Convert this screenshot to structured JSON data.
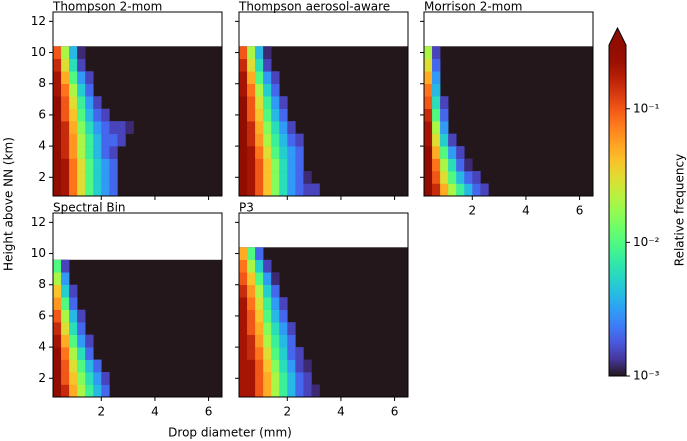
{
  "chart_data": [
    {
      "type": "heatmap",
      "title": "Thompson 2-mom",
      "x_edges": [
        0.2,
        0.5,
        0.8,
        1.1,
        1.4,
        1.7,
        2.0,
        2.3,
        2.6,
        2.9,
        3.2
      ],
      "y_edges": [
        0.8,
        1.6,
        2.4,
        3.2,
        4.0,
        4.8,
        5.6,
        6.4,
        7.2,
        8.0,
        8.8,
        9.6,
        10.4
      ],
      "values": [
        [
          0.3,
          0.2,
          0.08,
          0.03,
          0.01,
          0.005,
          0.003,
          0.002
        ],
        [
          0.3,
          0.2,
          0.08,
          0.03,
          0.01,
          0.005,
          0.003,
          0.002
        ],
        [
          0.3,
          0.2,
          0.08,
          0.03,
          0.01,
          0.005,
          0.003,
          0.002
        ],
        [
          0.3,
          0.15,
          0.06,
          0.02,
          0.008,
          0.004,
          0.002,
          0.0015
        ],
        [
          0.3,
          0.15,
          0.06,
          0.02,
          0.008,
          0.004,
          0.002,
          0.002,
          0.0015
        ],
        [
          0.3,
          0.15,
          0.05,
          0.015,
          0.006,
          0.003,
          0.002,
          0.0015,
          0.0015,
          0.0012
        ],
        [
          0.3,
          0.1,
          0.04,
          0.01,
          0.004,
          0.002,
          0.0015
        ],
        [
          0.3,
          0.1,
          0.03,
          0.008,
          0.003,
          0.0015
        ],
        [
          0.2,
          0.08,
          0.02,
          0.005,
          0.002
        ],
        [
          0.2,
          0.05,
          0.01,
          0.003,
          0.0015
        ],
        [
          0.15,
          0.03,
          0.006,
          0.0015
        ],
        [
          0.1,
          0.02,
          0.004,
          0.0012
        ]
      ],
      "xlim": [
        0.2,
        6.5
      ],
      "ylim": [
        0.8,
        12.6
      ],
      "xticks": [
        2,
        4,
        6
      ],
      "yticks": [
        2,
        4,
        6,
        8,
        10,
        12
      ]
    },
    {
      "type": "heatmap",
      "title": "Thompson aerosol-aware",
      "x_edges": [
        0.2,
        0.5,
        0.8,
        1.1,
        1.4,
        1.7,
        2.0,
        2.3,
        2.6,
        2.9,
        3.2
      ],
      "y_edges": [
        0.8,
        1.6,
        2.4,
        3.2,
        4.0,
        4.8,
        5.6,
        6.4,
        7.2,
        8.0,
        8.8,
        9.6,
        10.4
      ],
      "values": [
        [
          0.3,
          0.2,
          0.1,
          0.04,
          0.015,
          0.006,
          0.003,
          0.002,
          0.0015,
          0.0015
        ],
        [
          0.3,
          0.2,
          0.1,
          0.04,
          0.015,
          0.006,
          0.003,
          0.002,
          0.0012
        ],
        [
          0.3,
          0.2,
          0.1,
          0.04,
          0.015,
          0.006,
          0.003,
          0.002
        ],
        [
          0.3,
          0.2,
          0.08,
          0.03,
          0.01,
          0.005,
          0.003,
          0.002
        ],
        [
          0.3,
          0.15,
          0.06,
          0.02,
          0.008,
          0.004,
          0.002,
          0.0015
        ],
        [
          0.3,
          0.15,
          0.05,
          0.015,
          0.006,
          0.003,
          0.0015
        ],
        [
          0.3,
          0.1,
          0.04,
          0.01,
          0.004,
          0.002
        ],
        [
          0.3,
          0.1,
          0.03,
          0.008,
          0.003,
          0.0015
        ],
        [
          0.2,
          0.08,
          0.02,
          0.005,
          0.002
        ],
        [
          0.2,
          0.05,
          0.01,
          0.003,
          0.0015
        ],
        [
          0.15,
          0.03,
          0.006,
          0.0015
        ],
        [
          0.1,
          0.02,
          0.004,
          0.0012
        ]
      ],
      "xlim": [
        0.2,
        6.5
      ],
      "ylim": [
        0.8,
        12.6
      ],
      "xticks": [
        2,
        4,
        6
      ],
      "yticks": [
        2,
        4,
        6,
        8,
        10,
        12
      ]
    },
    {
      "type": "heatmap",
      "title": "Morrison 2-mom",
      "x_edges": [
        0.2,
        0.5,
        0.8,
        1.1,
        1.4,
        1.7,
        2.0,
        2.3,
        2.6,
        2.9,
        3.2
      ],
      "y_edges": [
        0.8,
        1.6,
        2.4,
        3.2,
        4.0,
        4.8,
        5.6,
        6.4,
        7.2,
        8.0,
        8.8,
        9.6,
        10.4
      ],
      "values": [
        [
          0.3,
          0.15,
          0.05,
          0.02,
          0.008,
          0.004,
          0.002,
          0.0015
        ],
        [
          0.3,
          0.1,
          0.03,
          0.01,
          0.004,
          0.002,
          0.0015
        ],
        [
          0.3,
          0.08,
          0.02,
          0.006,
          0.002,
          0.0012
        ],
        [
          0.25,
          0.05,
          0.01,
          0.003,
          0.0015
        ],
        [
          0.2,
          0.03,
          0.005,
          0.0015
        ],
        [
          0.2,
          0.02,
          0.003
        ],
        [
          0.15,
          0.01,
          0.002
        ],
        [
          0.1,
          0.006,
          0.0015
        ],
        [
          0.08,
          0.004
        ],
        [
          0.05,
          0.003
        ],
        [
          0.03,
          0.002
        ],
        [
          0.02,
          0.0015
        ]
      ],
      "xlim": [
        0.2,
        6.5
      ],
      "ylim": [
        0.8,
        12.6
      ],
      "xticks": [
        2,
        4,
        6
      ],
      "yticks": [
        2,
        4,
        6,
        8,
        10,
        12
      ]
    },
    {
      "type": "heatmap",
      "title": "Spectral Bin",
      "x_edges": [
        0.2,
        0.5,
        0.8,
        1.1,
        1.4,
        1.7,
        2.0,
        2.3,
        2.6,
        2.9,
        3.2
      ],
      "y_edges": [
        0.8,
        1.6,
        2.4,
        3.2,
        4.0,
        4.8,
        5.6,
        6.4,
        7.2,
        8.0,
        8.8,
        9.6
      ],
      "values": [
        [
          0.3,
          0.15,
          0.05,
          0.02,
          0.008,
          0.004,
          0.002
        ],
        [
          0.3,
          0.1,
          0.04,
          0.015,
          0.006,
          0.003,
          0.0015
        ],
        [
          0.3,
          0.1,
          0.03,
          0.01,
          0.004,
          0.002
        ],
        [
          0.25,
          0.08,
          0.02,
          0.006,
          0.002
        ],
        [
          0.2,
          0.05,
          0.01,
          0.003,
          0.0015
        ],
        [
          0.15,
          0.03,
          0.006,
          0.002
        ],
        [
          0.1,
          0.02,
          0.004,
          0.0015
        ],
        [
          0.06,
          0.01,
          0.002
        ],
        [
          0.04,
          0.005,
          0.0015
        ],
        [
          0.02,
          0.003
        ],
        [
          0.01,
          0.0015
        ]
      ],
      "xlim": [
        0.2,
        6.5
      ],
      "ylim": [
        0.8,
        12.6
      ],
      "xticks": [
        2,
        4,
        6
      ],
      "yticks": [
        2,
        4,
        6,
        8,
        10,
        12
      ]
    },
    {
      "type": "heatmap",
      "title": "P3",
      "x_edges": [
        0.2,
        0.5,
        0.8,
        1.1,
        1.4,
        1.7,
        2.0,
        2.3,
        2.6,
        2.9,
        3.2
      ],
      "y_edges": [
        0.8,
        1.6,
        2.4,
        3.2,
        4.0,
        4.8,
        5.6,
        6.4,
        7.2,
        8.0,
        8.8,
        9.6,
        10.4
      ],
      "values": [
        [
          0.2,
          0.2,
          0.1,
          0.05,
          0.02,
          0.008,
          0.004,
          0.002,
          0.0015,
          0.0012
        ],
        [
          0.2,
          0.2,
          0.1,
          0.05,
          0.02,
          0.008,
          0.004,
          0.002,
          0.0015
        ],
        [
          0.2,
          0.2,
          0.1,
          0.04,
          0.015,
          0.006,
          0.003,
          0.0015,
          0.0012
        ],
        [
          0.2,
          0.15,
          0.08,
          0.03,
          0.01,
          0.005,
          0.002,
          0.0015
        ],
        [
          0.2,
          0.15,
          0.06,
          0.02,
          0.008,
          0.004,
          0.002
        ],
        [
          0.2,
          0.1,
          0.05,
          0.015,
          0.006,
          0.003,
          0.0015
        ],
        [
          0.2,
          0.1,
          0.04,
          0.01,
          0.004,
          0.002
        ],
        [
          0.2,
          0.08,
          0.03,
          0.008,
          0.003,
          0.0015
        ],
        [
          0.15,
          0.06,
          0.02,
          0.005,
          0.002
        ],
        [
          0.1,
          0.04,
          0.01,
          0.003,
          0.0012
        ],
        [
          0.08,
          0.02,
          0.005,
          0.0015
        ],
        [
          0.05,
          0.01,
          0.002
        ]
      ],
      "xlim": [
        0.2,
        6.5
      ],
      "ylim": [
        0.8,
        12.6
      ],
      "xticks": [
        2,
        4,
        6
      ],
      "yticks": [
        2,
        4,
        6,
        8,
        10,
        12
      ]
    }
  ],
  "figure": {
    "xlabel": "Drop diameter (mm)",
    "ylabel": "Height above NN (km)"
  },
  "colorbar": {
    "label": "Relative frequency",
    "log": true,
    "lim": [
      0.001,
      0.3
    ],
    "extend": "max",
    "ticks": [
      {
        "value": 0.001,
        "label": "10⁻³"
      },
      {
        "value": 0.01,
        "label": "10⁻²"
      },
      {
        "value": 0.1,
        "label": "10⁻¹"
      }
    ]
  }
}
